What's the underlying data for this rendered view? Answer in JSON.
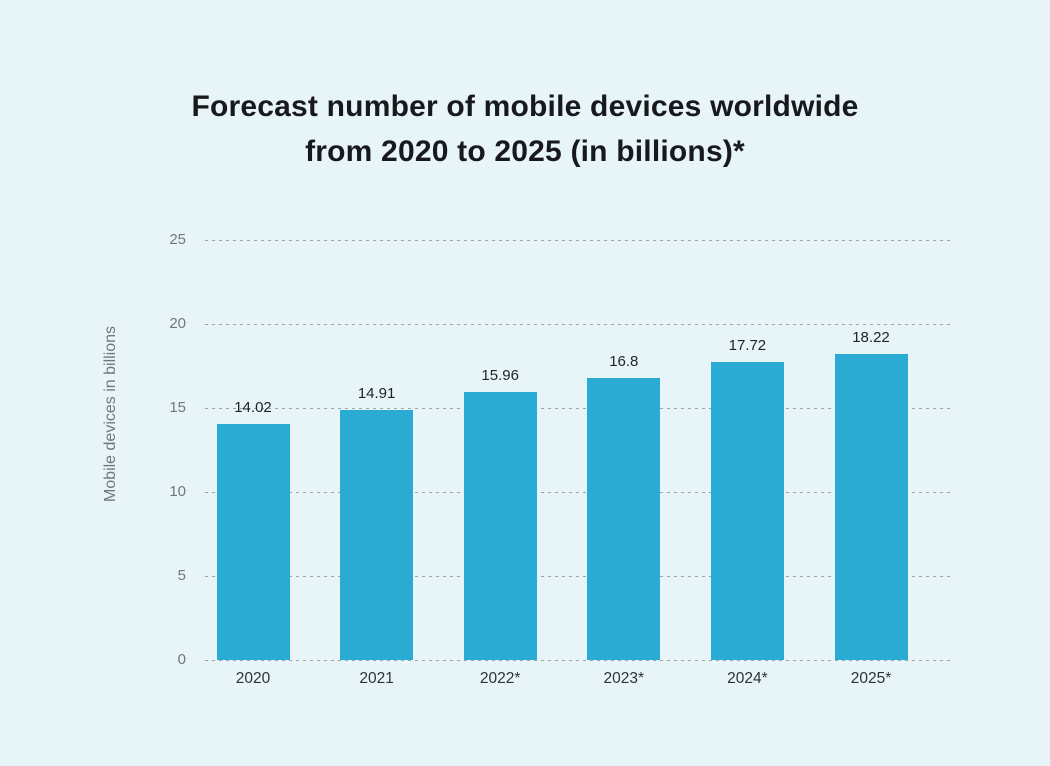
{
  "page": {
    "background_color": "#e7f4f8"
  },
  "chart_data": {
    "type": "bar",
    "title": "Forecast number of mobile devices worldwide from 2020 to 2025 (in billions)*",
    "xlabel": "",
    "ylabel": "Mobile devices in billions",
    "categories": [
      "2020",
      "2021",
      "2022*",
      "2023*",
      "2024*",
      "2025*"
    ],
    "values": [
      14.02,
      14.91,
      15.96,
      16.8,
      17.72,
      18.22
    ],
    "value_labels": [
      "14.02",
      "14.91",
      "15.96",
      "16.8",
      "17.72",
      "18.22"
    ],
    "ylim": [
      0,
      25
    ],
    "yticks": [
      0,
      5,
      10,
      15,
      20,
      25
    ],
    "grid": "horizontal-dashed",
    "legend_position": "none",
    "bar_color": "#29abd4",
    "colors": {
      "background": "#e7f4f8",
      "title_text": "#17191d",
      "tick_text": "#6d7880",
      "axis_label_text": "#6d7880",
      "value_label_text": "#1d232a",
      "category_label_text": "#2c333b",
      "gridline": "#9aa5ad"
    }
  }
}
